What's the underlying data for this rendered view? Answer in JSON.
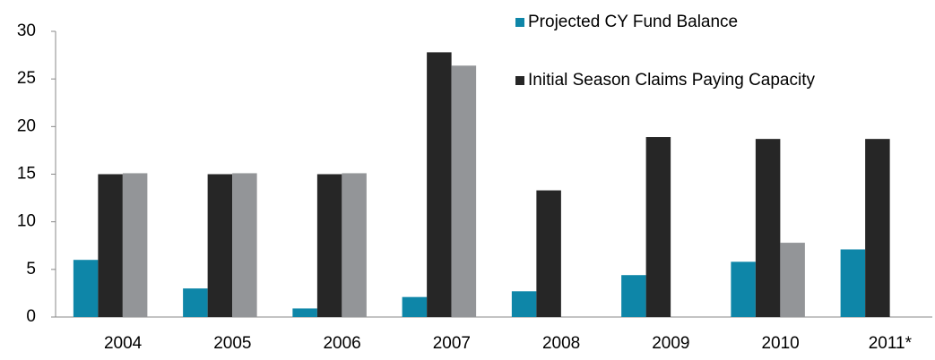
{
  "chart_data": {
    "type": "bar",
    "categories": [
      "2004",
      "2005",
      "2006",
      "2007",
      "2008",
      "2009",
      "2010",
      "2011*"
    ],
    "series": [
      {
        "name": "Projected CY Fund Balance",
        "color": "#0e86a8",
        "values": [
          6.0,
          3.0,
          0.9,
          2.1,
          2.7,
          4.4,
          5.8,
          7.1
        ]
      },
      {
        "name": "Initial Season Claims Paying Capacity",
        "color": "#262626",
        "values": [
          15.0,
          15.0,
          15.0,
          27.8,
          13.3,
          18.9,
          18.7,
          18.7
        ]
      },
      {
        "color": "#939598",
        "values": [
          15.1,
          15.1,
          15.1,
          26.4,
          null,
          null,
          7.8,
          null
        ]
      }
    ],
    "ylim": [
      0,
      30
    ],
    "yticks": [
      0,
      5,
      10,
      15,
      20,
      25,
      30
    ],
    "grid": false
  }
}
